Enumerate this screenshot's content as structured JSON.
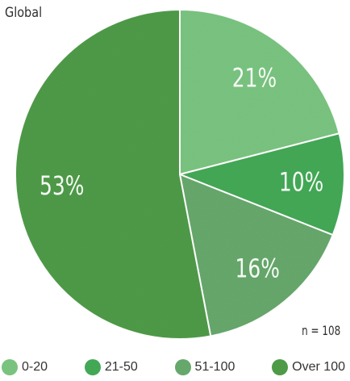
{
  "chart_data": {
    "type": "pie",
    "title": "Global",
    "note": "n = 108",
    "start_angle_deg": 0,
    "direction": "clockwise",
    "slices": [
      {
        "name": "0-20",
        "value": 21,
        "label": "21%",
        "color": "#79c37f"
      },
      {
        "name": "21-50",
        "value": 10,
        "label": "10%",
        "color": "#43a855"
      },
      {
        "name": "51-100",
        "value": 16,
        "label": "16%",
        "color": "#66a76b"
      },
      {
        "name": "Over 100",
        "value": 53,
        "label": "53%",
        "color": "#4e9a47"
      }
    ],
    "legend_placement": "bottom"
  }
}
